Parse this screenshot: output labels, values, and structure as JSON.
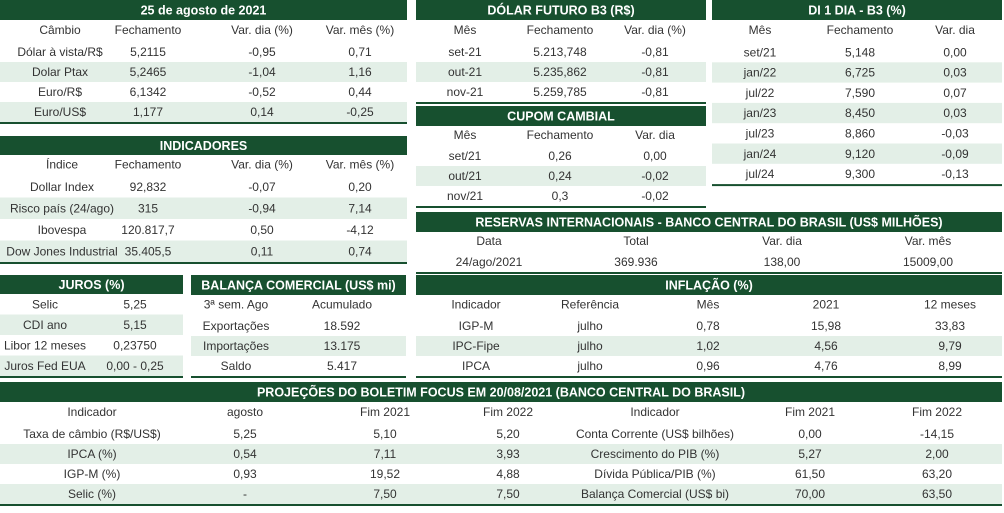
{
  "cambio": {
    "title": "25 de agosto de 2021",
    "headers": [
      "Câmbio",
      "Fechamento",
      "Var. dia (%)",
      "Var. mês (%)"
    ],
    "rows": [
      [
        "Dólar à vista/R$",
        "5,2115",
        "-0,95",
        "0,71"
      ],
      [
        "Dolar Ptax",
        "5,2465",
        "-1,04",
        "1,16"
      ],
      [
        "Euro/R$",
        "6,1342",
        "-0,52",
        "0,44"
      ],
      [
        "Euro/US$",
        "1,177",
        "0,14",
        "-0,25"
      ]
    ]
  },
  "indicadores": {
    "title": "INDICADORES",
    "headers": [
      "Índice",
      "Fechamento",
      "Var. dia (%)",
      "Var. mês (%)"
    ],
    "rows": [
      [
        "Dollar Index",
        "92,832",
        "-0,07",
        "0,20"
      ],
      [
        "Risco país (24/ago)",
        "315",
        "-0,94",
        "7,14"
      ],
      [
        "Ibovespa",
        "120.817,7",
        "0,50",
        "-4,12"
      ],
      [
        "Dow Jones Industrial",
        "35.405,5",
        "0,11",
        "0,74"
      ]
    ]
  },
  "dolar_futuro": {
    "title": "DÓLAR FUTURO B3 (R$)",
    "headers": [
      "Mês",
      "Fechamento",
      "Var. dia (%)"
    ],
    "rows": [
      [
        "set-21",
        "5.213,748",
        "-0,81"
      ],
      [
        "out-21",
        "5.235,862",
        "-0,81"
      ],
      [
        "nov-21",
        "5.259,785",
        "-0,81"
      ]
    ]
  },
  "cupom_cambial": {
    "title": "CUPOM CAMBIAL",
    "headers": [
      "Mês",
      "Fechamento",
      "Var. dia"
    ],
    "rows": [
      [
        "set/21",
        "0,26",
        "0,00"
      ],
      [
        "out/21",
        "0,24",
        "-0,02"
      ],
      [
        "nov/21",
        "0,3",
        "-0,02"
      ]
    ]
  },
  "di_1_dia": {
    "title": "DI 1 DIA - B3 (%)",
    "headers": [
      "Mês",
      "Fechamento",
      "Var. dia"
    ],
    "rows": [
      [
        "set/21",
        "5,148",
        "0,00"
      ],
      [
        "jan/22",
        "6,725",
        "0,03"
      ],
      [
        "jul/22",
        "7,590",
        "0,07"
      ],
      [
        "jan/23",
        "8,450",
        "0,03"
      ],
      [
        "jul/23",
        "8,860",
        "-0,03"
      ],
      [
        "jan/24",
        "9,120",
        "-0,09"
      ],
      [
        "jul/24",
        "9,300",
        "-0,13"
      ]
    ]
  },
  "reservas": {
    "title": "RESERVAS INTERNACIONAIS - BANCO CENTRAL DO BRASIL (US$ MILHÕES)",
    "headers": [
      "Data",
      "Total",
      "Var. dia",
      "Var. mês"
    ],
    "rows": [
      [
        "24/ago/2021",
        "369.936",
        "138,00",
        "15009,00"
      ]
    ]
  },
  "juros": {
    "title": "JUROS (%)",
    "headers": [],
    "rows": [
      [
        "Selic",
        "5,25"
      ],
      [
        "CDI ano",
        "5,15"
      ],
      [
        "Libor 12 meses",
        "0,23750"
      ],
      [
        "Juros Fed EUA",
        "0,00 - 0,25"
      ]
    ]
  },
  "balanca": {
    "title": "BALANÇA COMERCIAL (US$ mi)",
    "headers": [
      "3ª sem. Ago",
      "Acumulado"
    ],
    "rows": [
      [
        "Exportações",
        "18.592"
      ],
      [
        "Importações",
        "13.175"
      ],
      [
        "Saldo",
        "5.417"
      ]
    ]
  },
  "inflacao": {
    "title": "INFLAÇÃO (%)",
    "headers": [
      "Indicador",
      "Referência",
      "Mês",
      "2021",
      "12 meses"
    ],
    "rows": [
      [
        "IGP-M",
        "julho",
        "0,78",
        "15,98",
        "33,83"
      ],
      [
        "IPC-Fipe",
        "julho",
        "1,02",
        "4,56",
        "9,79"
      ],
      [
        "IPCA",
        "julho",
        "0,96",
        "4,76",
        "8,99"
      ]
    ]
  },
  "focus": {
    "title": "PROJEÇÕES DO BOLETIM FOCUS EM 20/08/2021 (BANCO CENTRAL DO BRASIL)",
    "headers": [
      "Indicador",
      "agosto",
      "Fim 2021",
      "Fim 2022",
      "Indicador",
      "Fim 2021",
      "Fim 2022"
    ],
    "rows": [
      [
        "Taxa de câmbio (R$/US$)",
        "5,25",
        "5,10",
        "5,20",
        "Conta Corrente (US$ bilhões)",
        "0,00",
        "-14,15"
      ],
      [
        "IPCA (%)",
        "0,54",
        "7,11",
        "3,93",
        "Crescimento do PIB (%)",
        "5,27",
        "2,00"
      ],
      [
        "IGP-M (%)",
        "0,93",
        "19,52",
        "4,88",
        "Dívida Pública/PIB (%)",
        "61,50",
        "63,20"
      ],
      [
        "Selic (%)",
        "-",
        "7,50",
        "7,50",
        "Balança Comercial (US$ bi)",
        "70,00",
        "63,50"
      ]
    ]
  }
}
